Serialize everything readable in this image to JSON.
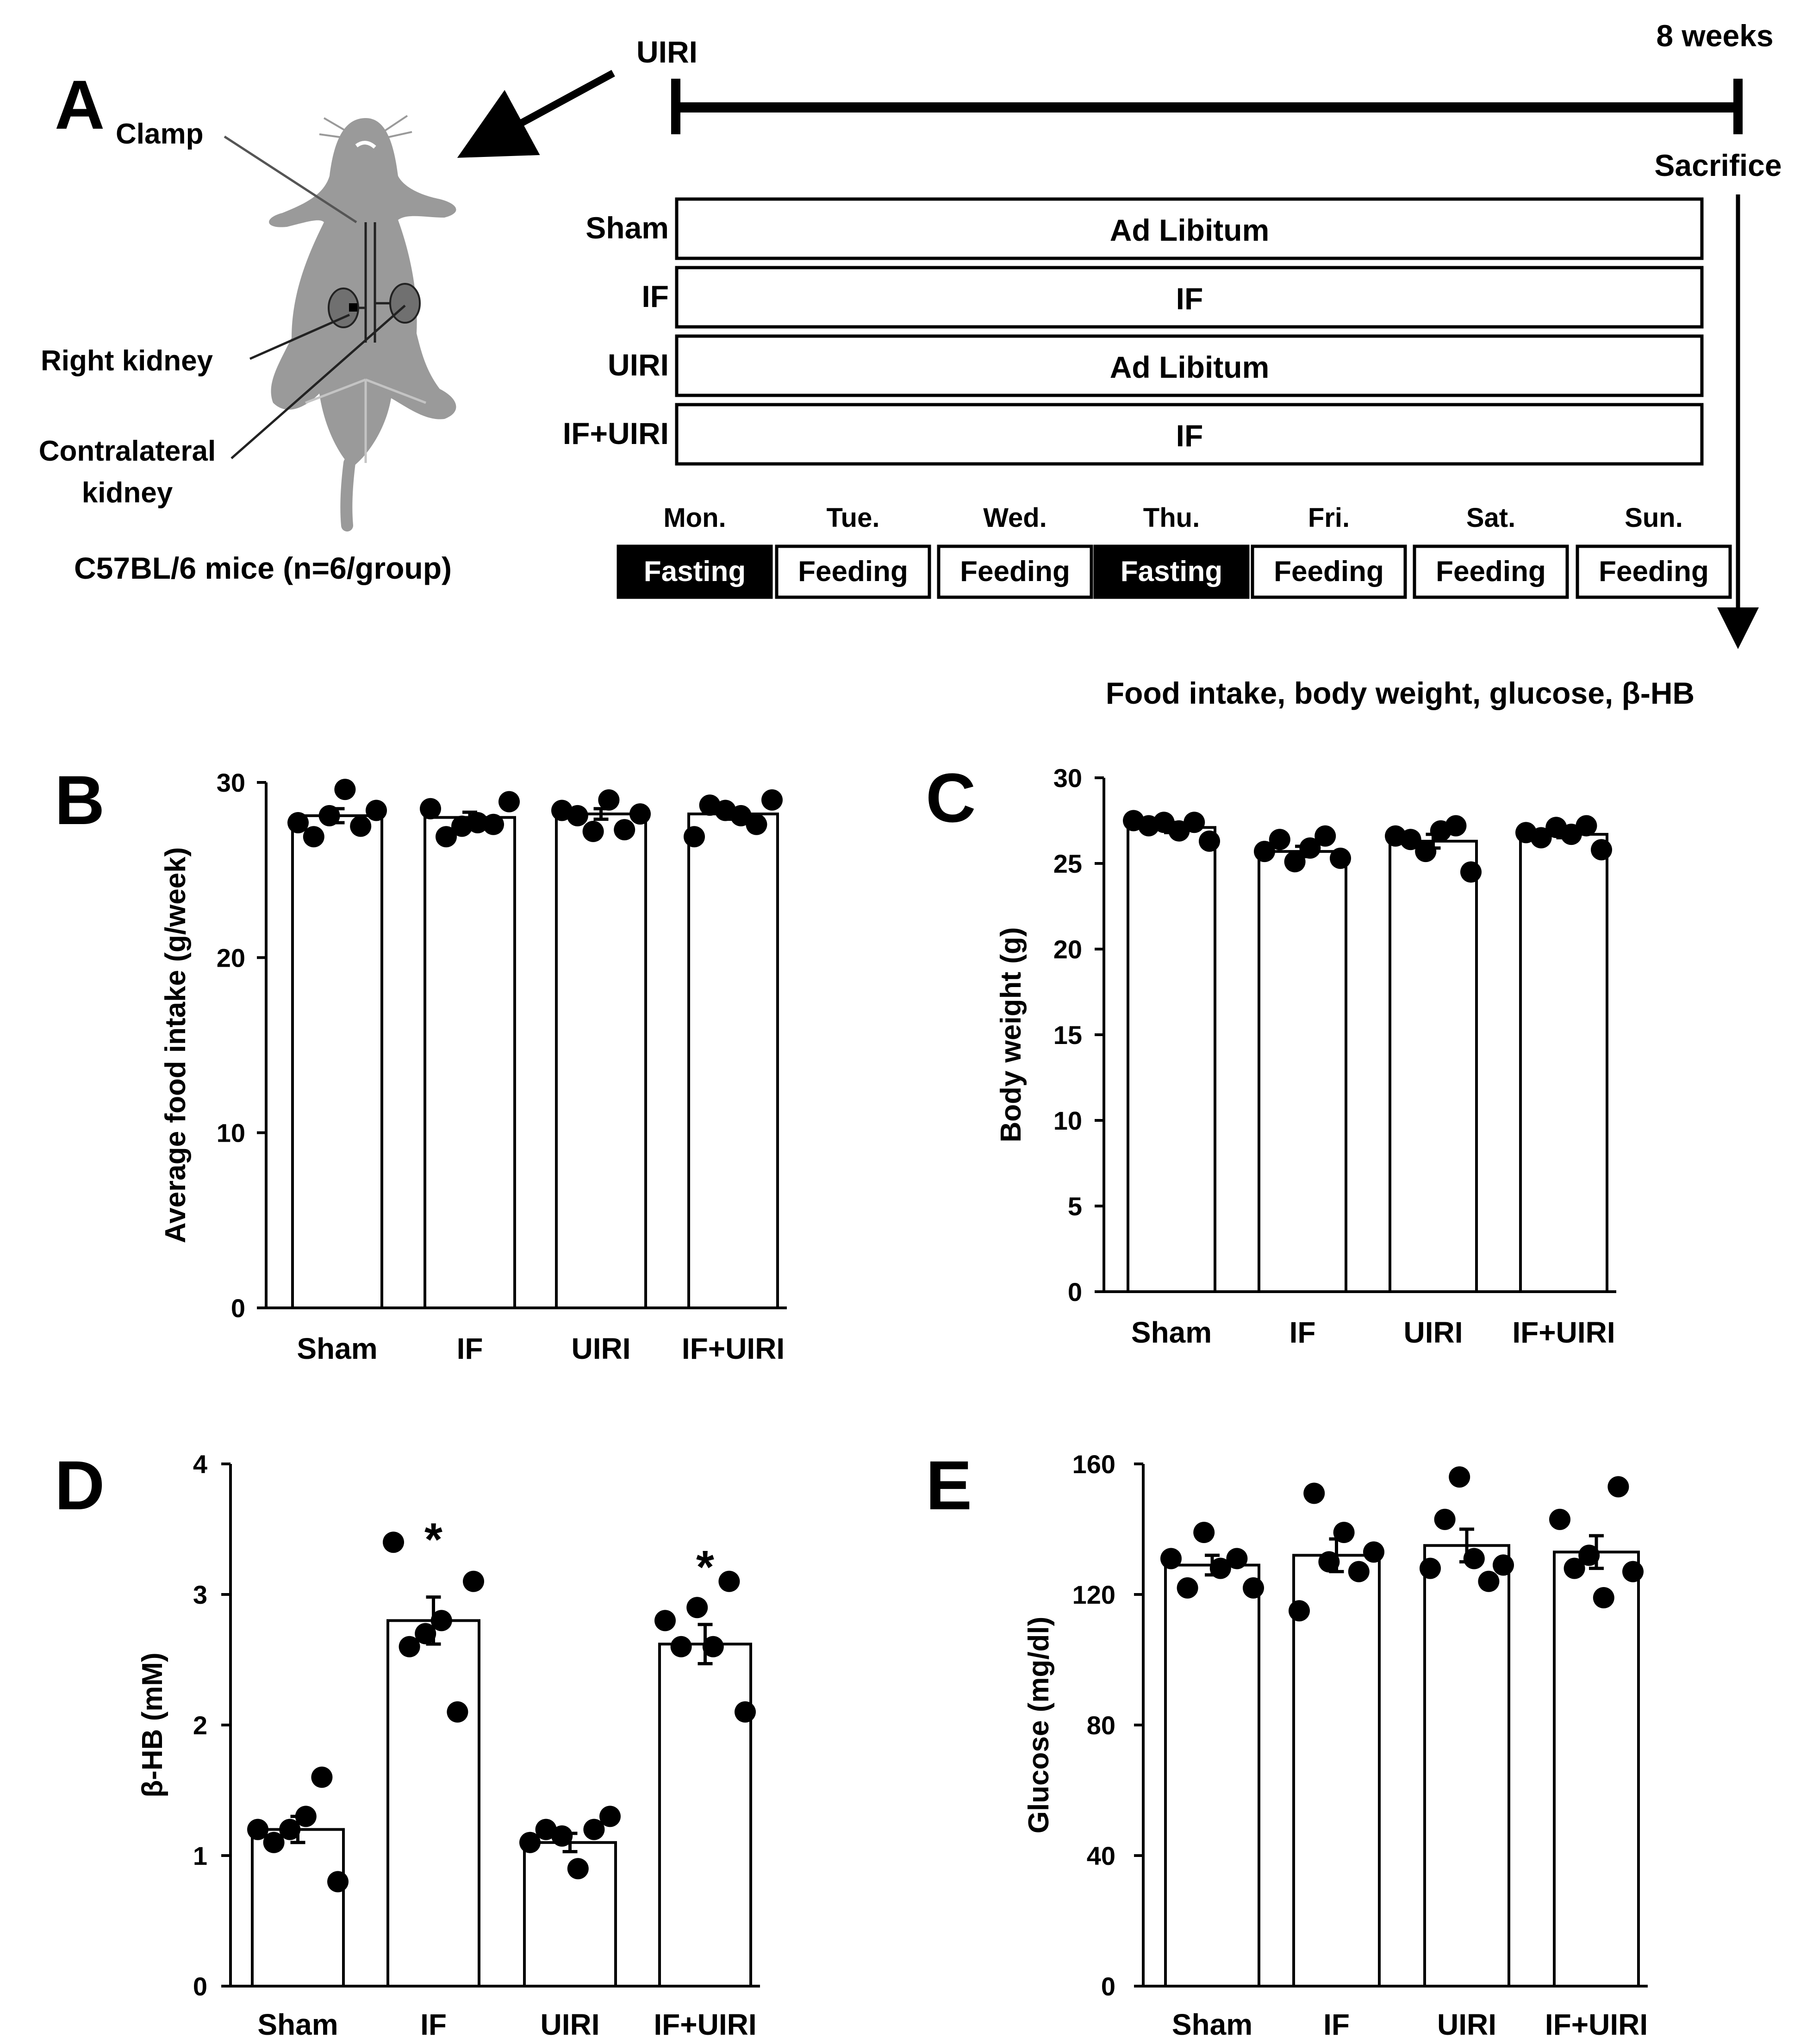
{
  "panel_a": {
    "letter": "A",
    "uiri_label": "UIRI",
    "end_label": "8 weeks",
    "sacrifice_label": "Sacrifice",
    "mouse_labels": {
      "clamp": "Clamp",
      "right_kidney": "Right kidney",
      "contralateral_line1": "Contralateral",
      "contralateral_line2": "kidney",
      "strain": "C57BL/6 mice (n=6/group)"
    },
    "groups": [
      {
        "name": "Sham",
        "diet": "Ad Libitum"
      },
      {
        "name": "IF",
        "diet": "IF"
      },
      {
        "name": "UIRI",
        "diet": "Ad Libitum"
      },
      {
        "name": "IF+UIRI",
        "diet": "IF"
      }
    ],
    "days": [
      {
        "day": "Mon.",
        "state": "Fasting"
      },
      {
        "day": "Tue.",
        "state": "Feeding"
      },
      {
        "day": "Wed.",
        "state": "Feeding"
      },
      {
        "day": "Thu.",
        "state": "Fasting"
      },
      {
        "day": "Fri.",
        "state": "Feeding"
      },
      {
        "day": "Sat.",
        "state": "Feeding"
      },
      {
        "day": "Sun.",
        "state": "Feeding"
      }
    ],
    "outcomes": "Food intake, body weight, glucose, β-HB"
  },
  "chart_data": [
    {
      "panel": "B",
      "type": "bar",
      "categories": [
        "Sham",
        "IF",
        "UIRI",
        "IF+UIRI"
      ],
      "values": [
        28.1,
        28.0,
        28.2,
        28.2
      ],
      "sem": [
        0.4,
        0.3,
        0.3,
        0.3
      ],
      "points": [
        [
          27.7,
          26.9,
          28.1,
          29.6,
          27.5,
          28.4
        ],
        [
          28.5,
          26.9,
          27.5,
          27.7,
          27.6,
          28.9
        ],
        [
          28.4,
          28.1,
          27.2,
          29.0,
          27.3,
          28.2
        ],
        [
          26.9,
          28.7,
          28.4,
          28.1,
          27.6,
          29.0
        ]
      ],
      "title": "",
      "xlabel": "",
      "ylabel": "Average food intake (g/week)",
      "ylim": [
        0,
        30
      ],
      "yticks": [
        0,
        10,
        20,
        30
      ]
    },
    {
      "panel": "C",
      "type": "bar",
      "categories": [
        "Sham",
        "IF",
        "UIRI",
        "IF+UIRI"
      ],
      "values": [
        27.1,
        25.7,
        26.3,
        26.7
      ],
      "sem": [
        0.3,
        0.3,
        0.4,
        0.2
      ],
      "points": [
        [
          27.5,
          27.2,
          27.4,
          26.9,
          27.4,
          26.3
        ],
        [
          25.7,
          26.4,
          25.1,
          25.9,
          26.6,
          25.3
        ],
        [
          26.6,
          26.4,
          25.7,
          26.9,
          27.2,
          24.5
        ],
        [
          26.8,
          26.5,
          27.1,
          26.7,
          27.2,
          25.8
        ]
      ],
      "title": "",
      "xlabel": "",
      "ylabel": "Body weight (g)",
      "ylim": [
        0,
        30
      ],
      "yticks": [
        0,
        5,
        10,
        15,
        20,
        25,
        30
      ]
    },
    {
      "panel": "D",
      "type": "bar",
      "categories": [
        "Sham",
        "IF",
        "UIRI",
        "IF+UIRI"
      ],
      "values": [
        1.2,
        2.8,
        1.1,
        2.62
      ],
      "sem": [
        0.1,
        0.18,
        0.07,
        0.15
      ],
      "points": [
        [
          1.2,
          1.1,
          1.2,
          1.3,
          1.6,
          0.8
        ],
        [
          3.4,
          2.6,
          2.7,
          2.8,
          2.1,
          3.1
        ],
        [
          1.1,
          1.2,
          1.15,
          0.9,
          1.2,
          1.3
        ],
        [
          2.8,
          2.6,
          2.9,
          2.6,
          3.1,
          2.1
        ]
      ],
      "significance": [
        "",
        "*",
        "",
        "*"
      ],
      "title": "",
      "xlabel": "",
      "ylabel": "β-HB (mM)",
      "ylim": [
        0,
        4
      ],
      "yticks": [
        0,
        1,
        2,
        3,
        4
      ]
    },
    {
      "panel": "E",
      "type": "bar",
      "categories": [
        "Sham",
        "IF",
        "UIRI",
        "IF+UIRI"
      ],
      "values": [
        129,
        132,
        135,
        133
      ],
      "sem": [
        3,
        5,
        5,
        5
      ],
      "points": [
        [
          131,
          122,
          139,
          128,
          131,
          122
        ],
        [
          115,
          151,
          130,
          139,
          127,
          133
        ],
        [
          128,
          143,
          156,
          131,
          124,
          129
        ],
        [
          143,
          128,
          132,
          119,
          153,
          127
        ]
      ],
      "title": "",
      "xlabel": "",
      "ylabel": "Glucose (mg/dl)",
      "ylim": [
        0,
        160
      ],
      "yticks": [
        0,
        40,
        80,
        120,
        160
      ]
    }
  ]
}
